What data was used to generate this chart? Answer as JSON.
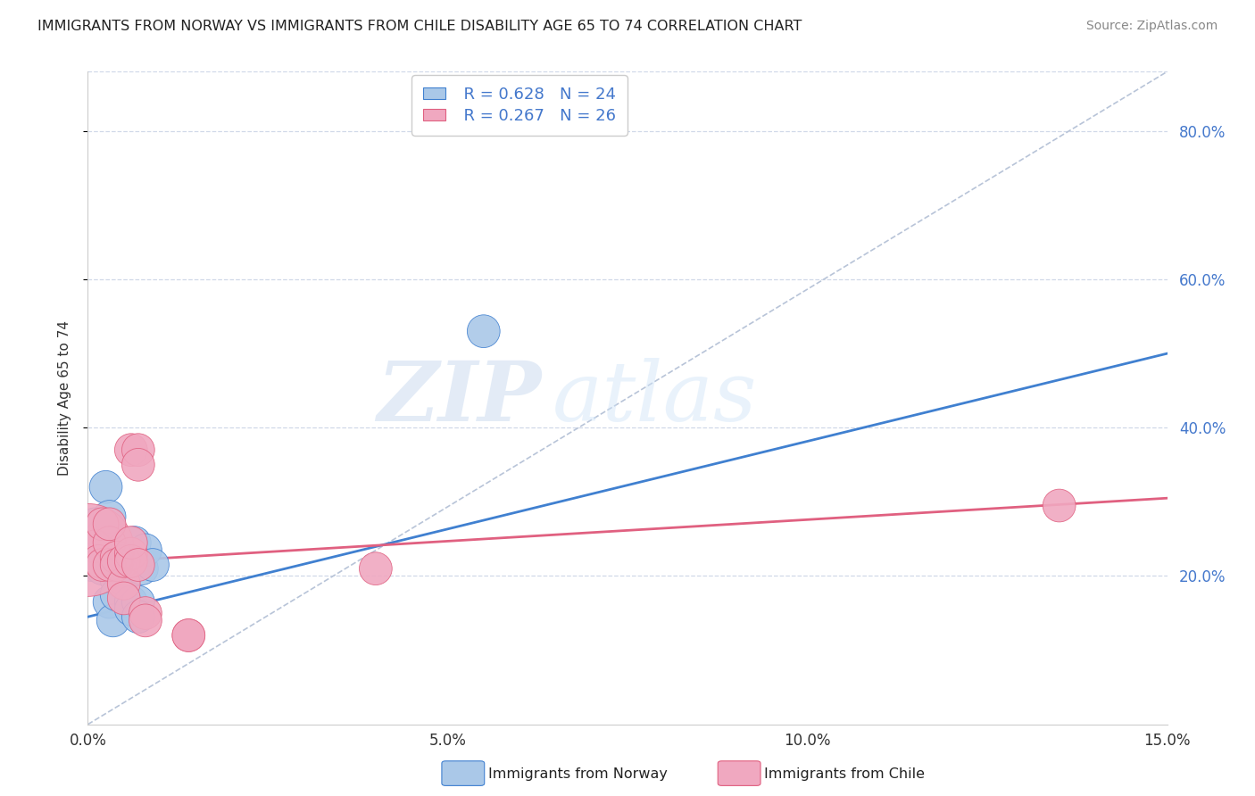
{
  "title": "IMMIGRANTS FROM NORWAY VS IMMIGRANTS FROM CHILE DISABILITY AGE 65 TO 74 CORRELATION CHART",
  "source": "Source: ZipAtlas.com",
  "ylabel": "Disability Age 65 to 74",
  "xmin": 0.0,
  "xmax": 0.15,
  "ymin": 0.0,
  "ymax": 0.88,
  "norway_R": 0.628,
  "norway_N": 24,
  "chile_R": 0.267,
  "chile_N": 26,
  "norway_color": "#aac8e8",
  "chile_color": "#f0a8c0",
  "norway_line_color": "#4080d0",
  "chile_line_color": "#e06080",
  "reference_line_color": "#b8c4d8",
  "legend_norway_label": "Immigrants from Norway",
  "legend_chile_label": "Immigrants from Chile",
  "norway_scatter_x": [
    0.0005,
    0.001,
    0.0015,
    0.002,
    0.002,
    0.0025,
    0.003,
    0.003,
    0.0035,
    0.004,
    0.004,
    0.004,
    0.005,
    0.005,
    0.005,
    0.006,
    0.006,
    0.0065,
    0.007,
    0.007,
    0.0075,
    0.008,
    0.009,
    0.055
  ],
  "norway_scatter_y": [
    0.215,
    0.27,
    0.25,
    0.255,
    0.21,
    0.32,
    0.28,
    0.165,
    0.14,
    0.225,
    0.195,
    0.175,
    0.23,
    0.215,
    0.195,
    0.165,
    0.155,
    0.245,
    0.165,
    0.145,
    0.21,
    0.235,
    0.215,
    0.53
  ],
  "norway_scatter_size": [
    35,
    35,
    35,
    35,
    35,
    35,
    35,
    35,
    35,
    35,
    35,
    35,
    35,
    35,
    35,
    35,
    35,
    35,
    35,
    35,
    35,
    35,
    35,
    35
  ],
  "chile_scatter_x": [
    0.0,
    0.001,
    0.0015,
    0.002,
    0.002,
    0.003,
    0.003,
    0.003,
    0.004,
    0.004,
    0.005,
    0.005,
    0.005,
    0.006,
    0.006,
    0.006,
    0.006,
    0.007,
    0.007,
    0.007,
    0.008,
    0.008,
    0.014,
    0.014,
    0.04,
    0.135
  ],
  "chile_scatter_y": [
    0.235,
    0.24,
    0.22,
    0.27,
    0.215,
    0.245,
    0.27,
    0.215,
    0.225,
    0.215,
    0.19,
    0.17,
    0.22,
    0.37,
    0.23,
    0.22,
    0.245,
    0.37,
    0.35,
    0.215,
    0.15,
    0.14,
    0.12,
    0.12,
    0.21,
    0.295
  ],
  "chile_scatter_size": [
    280,
    35,
    35,
    35,
    35,
    35,
    35,
    35,
    35,
    35,
    35,
    35,
    35,
    35,
    35,
    35,
    35,
    35,
    35,
    35,
    35,
    35,
    35,
    35,
    35,
    35
  ],
  "norway_line_x": [
    0.0,
    0.15
  ],
  "norway_line_y": [
    0.145,
    0.5
  ],
  "chile_line_x": [
    0.0,
    0.15
  ],
  "chile_line_y": [
    0.218,
    0.305
  ],
  "ref_line_x": [
    0.0,
    0.15
  ],
  "ref_line_y": [
    0.0,
    0.88
  ],
  "ytick_labels": [
    "20.0%",
    "40.0%",
    "60.0%",
    "80.0%"
  ],
  "ytick_values": [
    0.2,
    0.4,
    0.6,
    0.8
  ],
  "xtick_labels": [
    "0.0%",
    "5.0%",
    "10.0%",
    "15.0%"
  ],
  "xtick_values": [
    0.0,
    0.05,
    0.1,
    0.15
  ],
  "watermark_zip": "ZIP",
  "watermark_atlas": "atlas",
  "background_color": "#ffffff",
  "grid_color": "#d0d8e8"
}
